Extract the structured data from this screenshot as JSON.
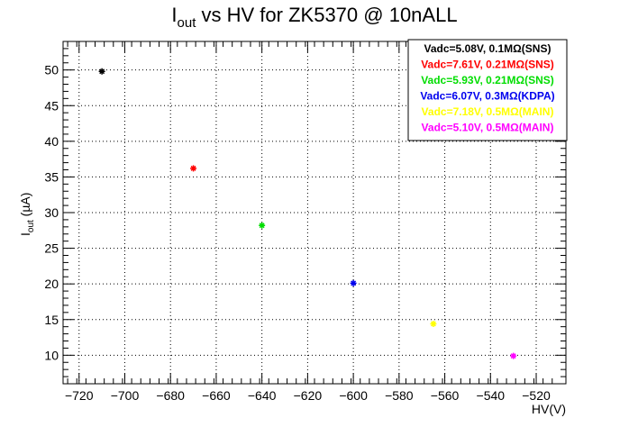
{
  "chart_data": {
    "type": "scatter",
    "title_main": "I",
    "title_sub": "out",
    "title_rest": " vs HV for ZK5370 @ 10nALL",
    "xlabel": "HV(V)",
    "ylabel_main": "I",
    "ylabel_sub": "out",
    "ylabel_rest": " (µA)",
    "xlim": [
      -727,
      -507
    ],
    "ylim": [
      6,
      54
    ],
    "grid": true,
    "legend_position": "top-right",
    "x_ticks": [
      -720,
      -700,
      -680,
      -660,
      -640,
      -620,
      -600,
      -580,
      -560,
      -540,
      -520
    ],
    "y_ticks": [
      10,
      15,
      20,
      25,
      30,
      35,
      40,
      45,
      50
    ],
    "series": [
      {
        "name": "Vadc=5.08V, 0.1MΩ(SNS)",
        "color": "#000000",
        "x": [
          -710
        ],
        "y": [
          49.8
        ]
      },
      {
        "name": "Vadc=7.61V, 0.21MΩ(SNS)",
        "color": "#ff0000",
        "x": [
          -670
        ],
        "y": [
          36.2
        ]
      },
      {
        "name": "Vadc=5.93V, 0.21MΩ(SNS)",
        "color": "#00dd00",
        "x": [
          -640
        ],
        "y": [
          28.2
        ]
      },
      {
        "name": "Vadc=6.07V, 0.3MΩ(KDPA)",
        "color": "#0000ee",
        "x": [
          -600
        ],
        "y": [
          20.1
        ]
      },
      {
        "name": "Vadc=7.18V, 0.5MΩ(MAIN)",
        "color": "#ffff00",
        "x": [
          -565
        ],
        "y": [
          14.4
        ]
      },
      {
        "name": "Vadc=5.10V, 0.5MΩ(MAIN)",
        "color": "#ff00ff",
        "x": [
          -530
        ],
        "y": [
          9.9
        ]
      }
    ]
  }
}
